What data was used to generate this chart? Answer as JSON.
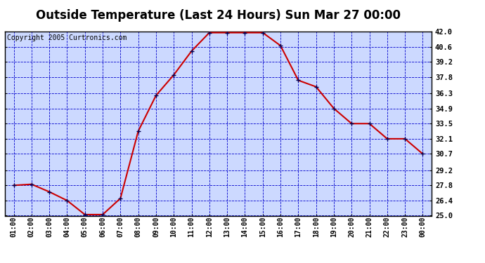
{
  "title": "Outside Temperature (Last 24 Hours) Sun Mar 27 00:00",
  "copyright": "Copyright 2005 Curtronics.com",
  "x_labels": [
    "01:00",
    "02:00",
    "03:00",
    "04:00",
    "05:00",
    "06:00",
    "07:00",
    "08:00",
    "09:00",
    "10:00",
    "11:00",
    "12:00",
    "13:00",
    "14:00",
    "15:00",
    "16:00",
    "17:00",
    "18:00",
    "19:00",
    "20:00",
    "21:00",
    "22:00",
    "23:00",
    "00:00"
  ],
  "y_values": [
    27.8,
    27.9,
    27.2,
    26.4,
    25.1,
    25.1,
    26.6,
    32.8,
    36.1,
    38.0,
    40.2,
    41.9,
    41.9,
    41.9,
    41.9,
    40.7,
    37.5,
    36.9,
    34.9,
    33.5,
    33.5,
    32.1,
    32.1,
    30.7
  ],
  "ylim": [
    25.0,
    42.0
  ],
  "yticks": [
    25.0,
    26.4,
    27.8,
    29.2,
    30.7,
    32.1,
    33.5,
    34.9,
    36.3,
    37.8,
    39.2,
    40.6,
    42.0
  ],
  "line_color": "#cc0000",
  "marker_color": "#000055",
  "grid_color": "#0000cc",
  "background_color": "#ccd9ff",
  "title_fontsize": 12,
  "copyright_fontsize": 7,
  "border_color": "#000000",
  "fig_width": 6.9,
  "fig_height": 3.75,
  "dpi": 100
}
